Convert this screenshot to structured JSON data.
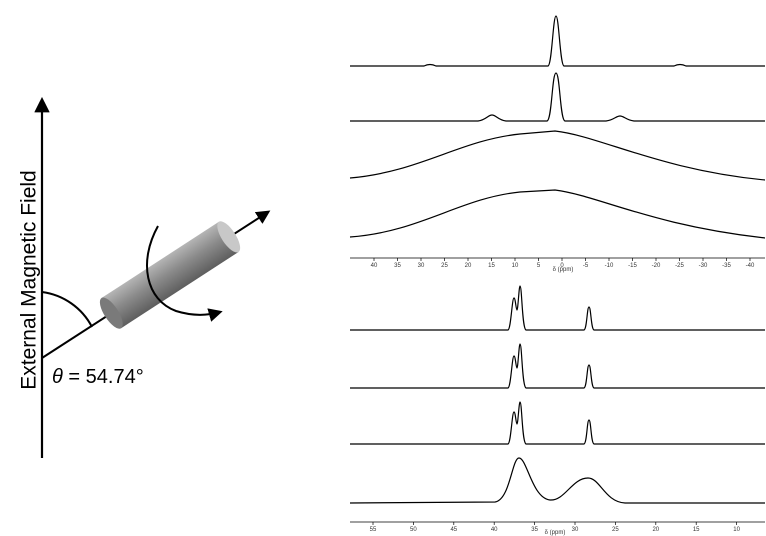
{
  "diagram": {
    "axis_label": "External Magnetic Field",
    "angle_symbol": "θ",
    "angle_text": " = 54.74°"
  },
  "spectra": {
    "top_axis": {
      "ticks": [
        "40",
        "35",
        "30",
        "25",
        "20",
        "15",
        "10",
        "5",
        "0",
        "-5",
        "-10",
        "-15",
        "-20",
        "-25",
        "-30",
        "-35",
        "-40"
      ],
      "label": "δ (ppm)"
    },
    "bottom_axis": {
      "ticks": [
        "55",
        "50",
        "45",
        "40",
        "35",
        "30",
        "25",
        "20",
        "15",
        "10"
      ],
      "label": "δ (ppm)"
    }
  }
}
